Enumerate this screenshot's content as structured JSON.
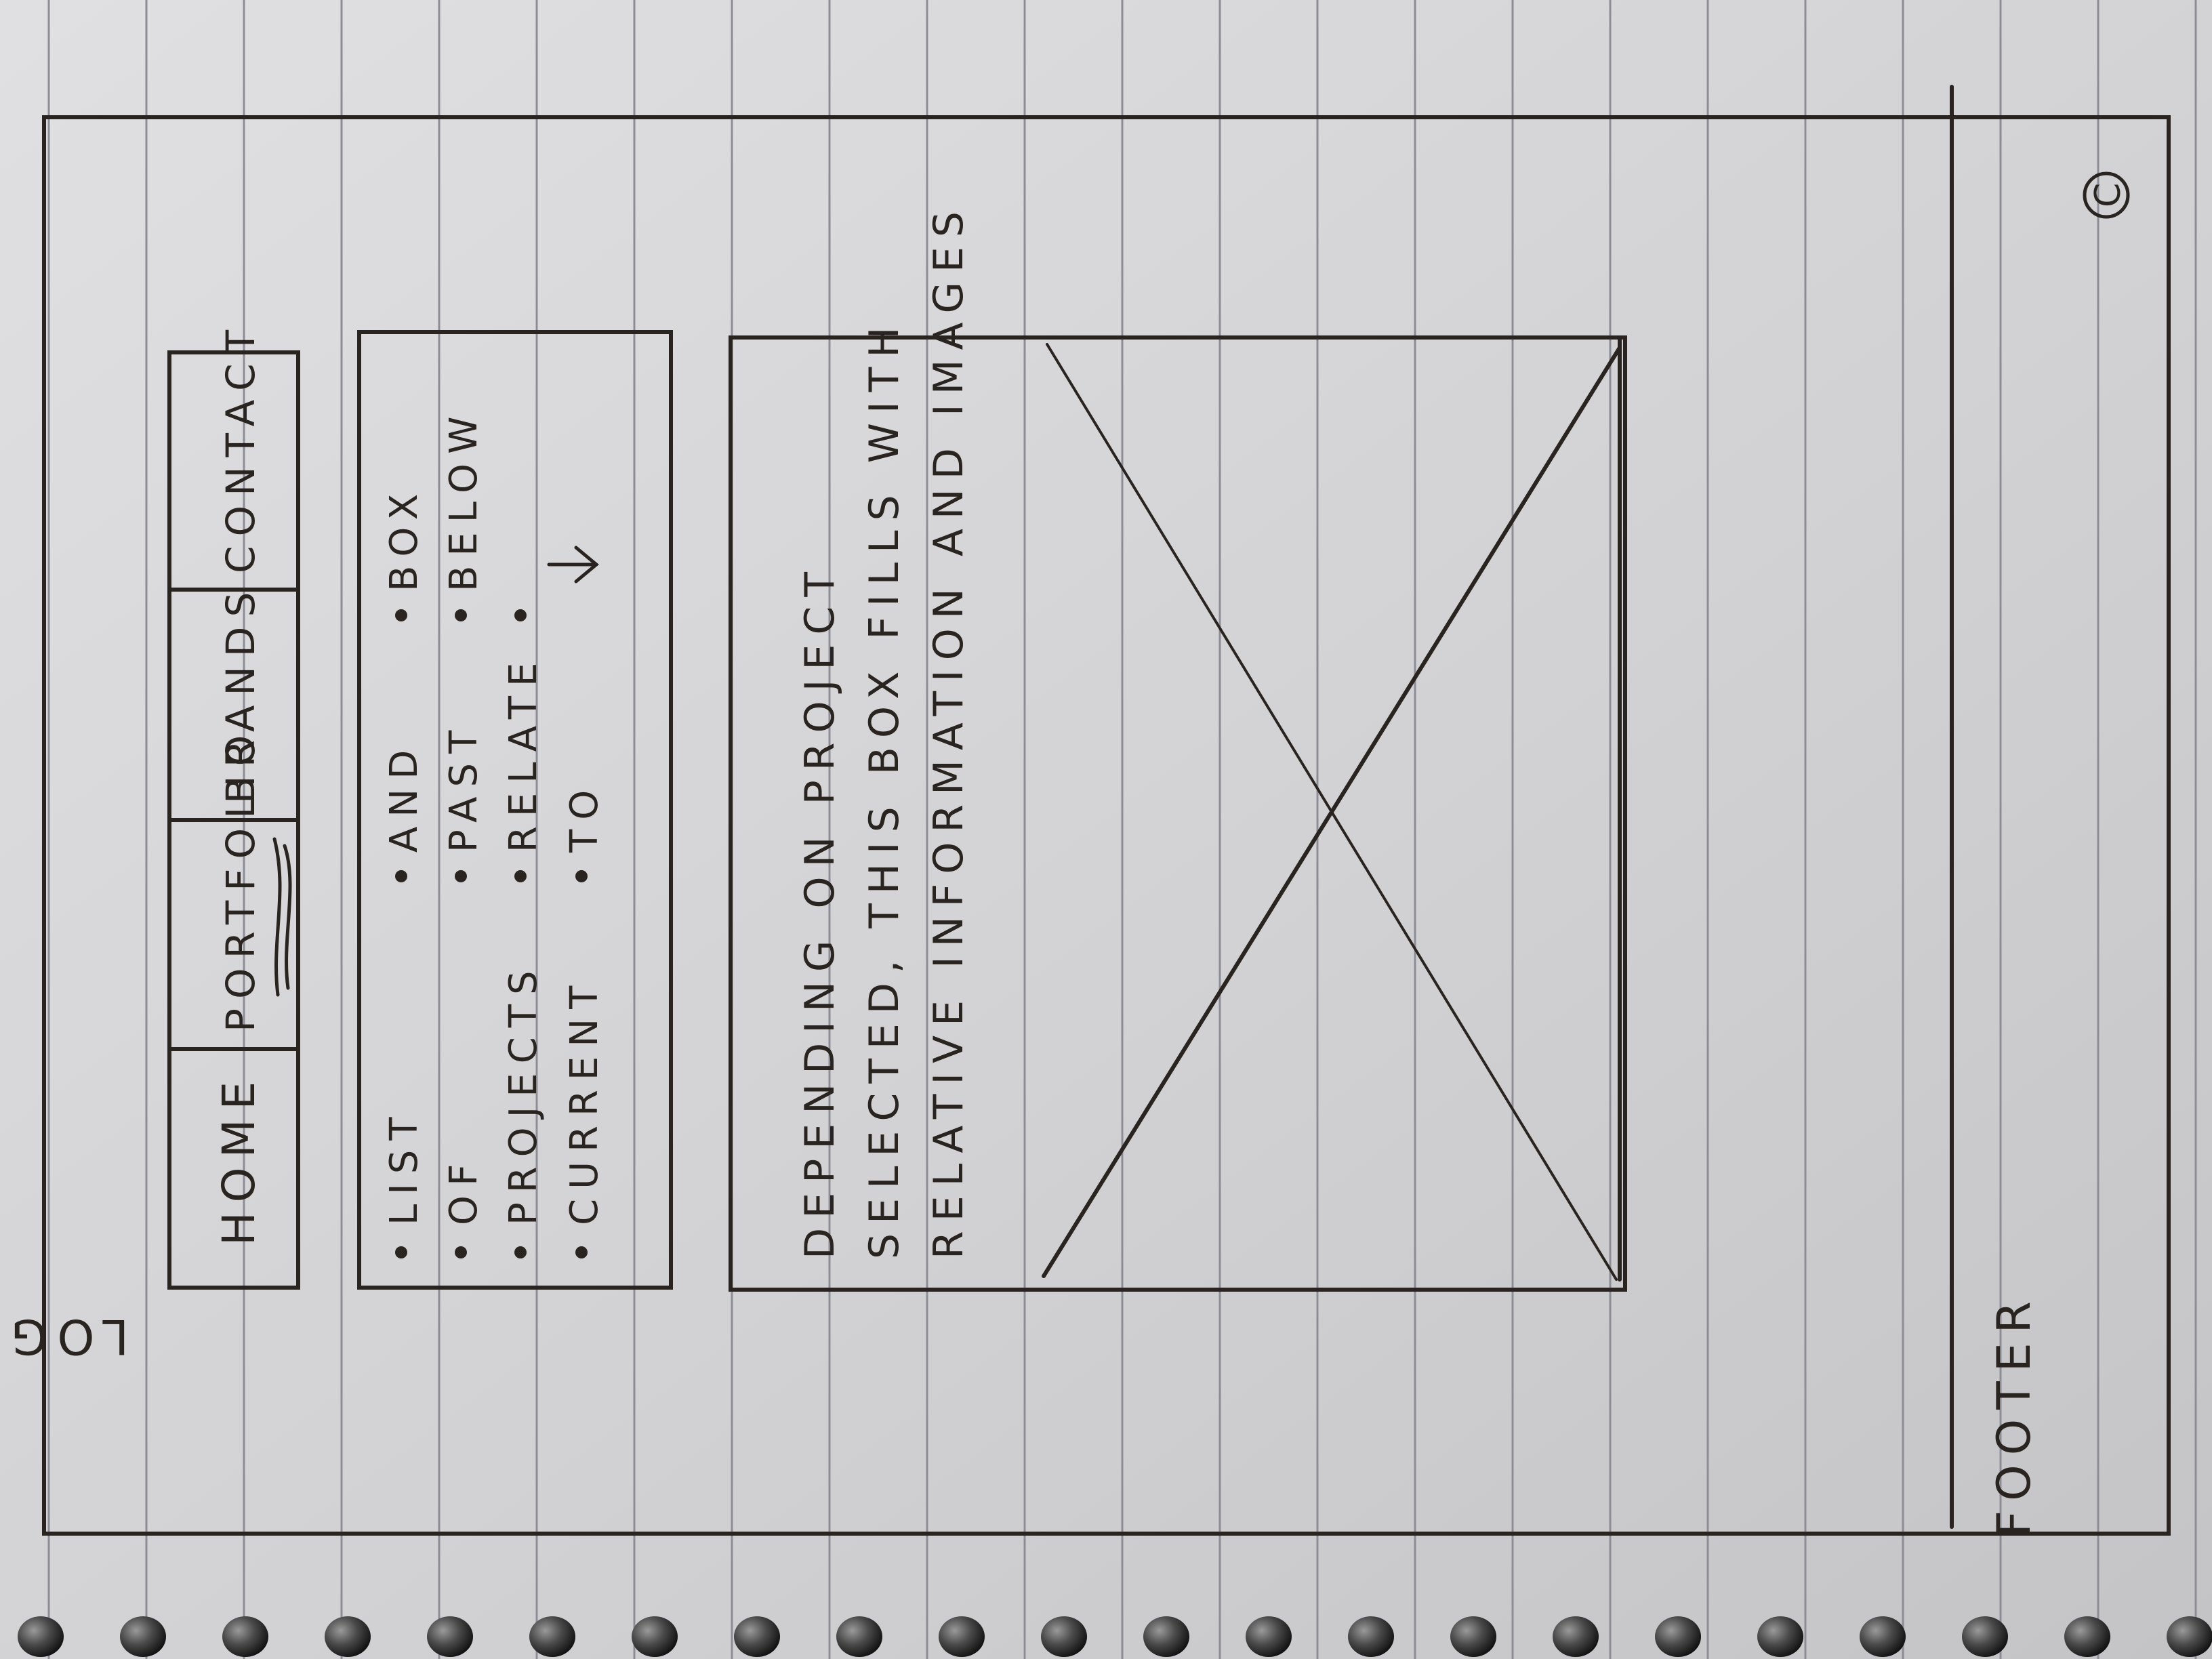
{
  "sketch": {
    "logo": "LOGO",
    "nav": {
      "items": [
        {
          "label": "HOME"
        },
        {
          "label": "PORTFOLIO"
        },
        {
          "label": "BRANDS"
        },
        {
          "label": "CONTACT"
        }
      ],
      "active": "PORTFOLIO"
    },
    "project_list": {
      "rows": [
        [
          "LIST",
          "AND",
          "BOX"
        ],
        [
          "OF",
          "PAST",
          "BELOW"
        ],
        [
          "PROJECTS",
          "RELATE",
          ""
        ],
        [
          "CURRENT",
          "TO",
          ""
        ]
      ]
    },
    "content_box": {
      "lines": [
        "DEPENDING ON PROJECT",
        "SELECTED, THIS BOX FILLS WITH",
        "RELATIVE INFORMATION AND IMAGES"
      ]
    },
    "footer": {
      "label": "FOOTER",
      "copyright": "C"
    },
    "colors": {
      "paper": "#d3d3d5",
      "ink": "#2a2420",
      "rule_line": "#8d8d97",
      "background": "#d8d8d8"
    }
  }
}
